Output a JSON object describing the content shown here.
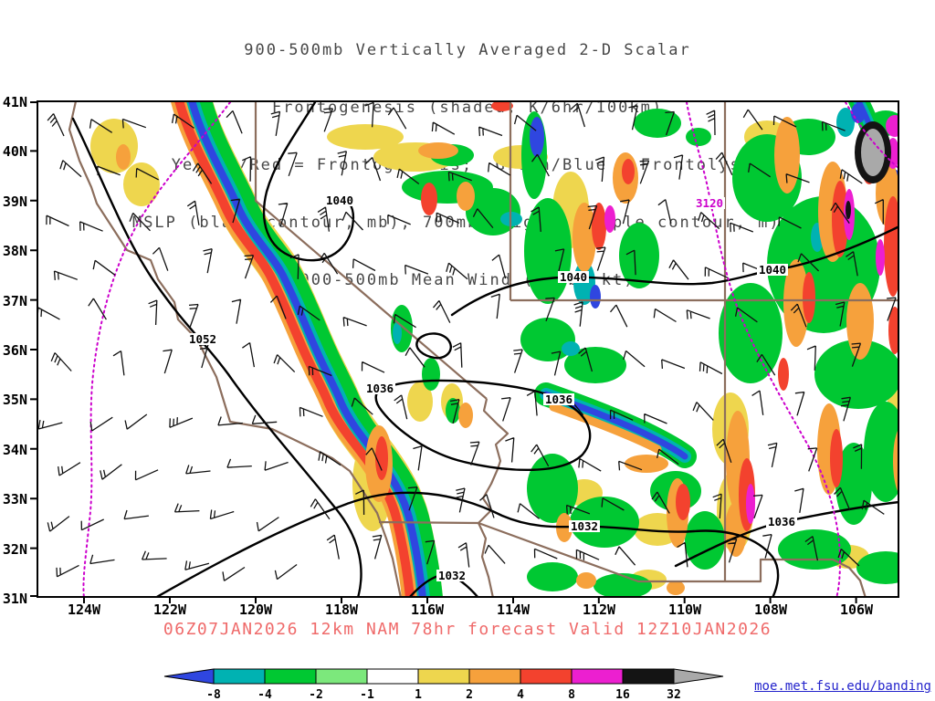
{
  "title": {
    "lines": [
      "900-500mb Vertically Averaged 2-D Scalar",
      "Frontogenesis (shaded, K/6hr/100km)",
      "Yellow/Red = Frontogenesis;  Green/Blue = Frontolysis",
      "MSLP (black contour, mb), 700mb height (purple contour, m) &",
      "900-500mb Mean Wind (barb, kt)"
    ]
  },
  "axes": {
    "lat": [
      "41N",
      "40N",
      "39N",
      "38N",
      "37N",
      "36N",
      "35N",
      "34N",
      "33N",
      "32N",
      "31N"
    ],
    "lon": [
      "124W",
      "122W",
      "120W",
      "118W",
      "116W",
      "114W",
      "112W",
      "110W",
      "108W",
      "106W"
    ]
  },
  "contour_labels": [
    "1040",
    "3120",
    "1040",
    "1040",
    "1052",
    "1036",
    "1036",
    "1032",
    "1036",
    "1032"
  ],
  "caption": "06Z07JAN2026 12km NAM 78hr forecast Valid 12Z10JAN2026",
  "link": "moe.met.fsu.edu/banding",
  "colorbar": {
    "labels": [
      "-8",
      "-4",
      "-2",
      "-1",
      "1",
      "2",
      "4",
      "8",
      "16",
      "32"
    ],
    "colors": [
      "#2f46e0",
      "#00b2b2",
      "#00c832",
      "#7ce87c",
      "#ffffff",
      "#eed64e",
      "#f6a13c",
      "#f3422e",
      "#ec1fd0",
      "#141414",
      "#a9a9a9"
    ]
  },
  "chart_data": {
    "type": "heatmap",
    "title": "900-500mb Vertically Averaged 2-D Scalar Frontogenesis",
    "units": "K/6hr/100km",
    "legend": {
      "yellow_red": "Frontogenesis",
      "green_blue": "Frontolysis"
    },
    "overlays": [
      "MSLP (black contour, mb)",
      "700mb height (purple contour, m)",
      "900-500mb Mean Wind (barb, kt)"
    ],
    "x_ticks": [
      "124W",
      "122W",
      "120W",
      "118W",
      "116W",
      "114W",
      "112W",
      "110W",
      "108W",
      "106W"
    ],
    "y_ticks": [
      "41N",
      "40N",
      "39N",
      "38N",
      "37N",
      "36N",
      "35N",
      "34N",
      "33N",
      "32N",
      "31N"
    ],
    "x_range_lon": [
      "125.1W",
      "105.0W"
    ],
    "y_range_lat": [
      "31N",
      "41N"
    ],
    "shading_levels": [
      -8,
      -4,
      -2,
      -1,
      1,
      2,
      4,
      8,
      16,
      32
    ],
    "shading_colors": [
      "#2f46e0",
      "#00b2b2",
      "#00c832",
      "#7ce87c",
      "#ffffff",
      "#eed64e",
      "#f6a13c",
      "#f3422e",
      "#ec1fd0",
      "#141414",
      "#a9a9a9"
    ],
    "mslp_labels_mb": [
      1052,
      1040,
      1040,
      1040,
      1036,
      1036,
      1032,
      1032,
      1036
    ],
    "height_700mb_labels_m": [
      3120
    ],
    "model": "12km NAM",
    "init": "06Z07JAN2026",
    "forecast_hour": "78hr",
    "valid": "12Z10JAN2026",
    "region": "Southwestern United States"
  }
}
